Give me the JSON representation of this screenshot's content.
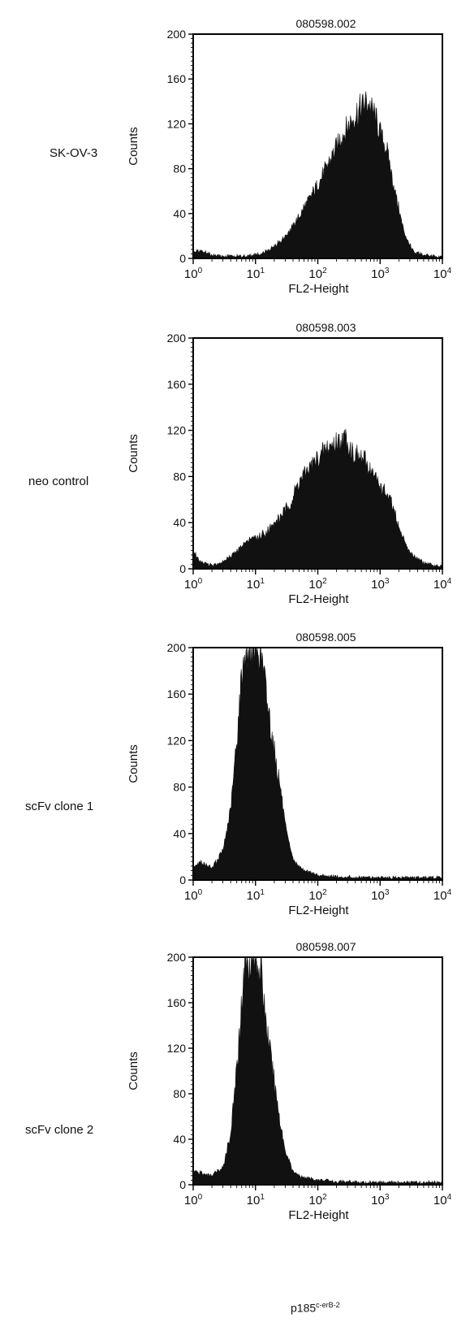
{
  "footer": {
    "base": "p185",
    "sup": "c-erB-2"
  },
  "chart_data": [
    {
      "type": "area",
      "title": "080598.002",
      "sample": "SK-OV-3",
      "xlabel": "FL2-Height",
      "ylabel": "Counts",
      "x_scale": "log",
      "xlim": [
        1,
        10000
      ],
      "ylim": [
        0,
        200
      ],
      "x_ticks": [
        "10^0",
        "10^1",
        "10^2",
        "10^3",
        "10^4"
      ],
      "y_ticks": [
        0,
        40,
        80,
        120,
        160,
        200
      ],
      "x": [
        1,
        1.3,
        2,
        4,
        7,
        10,
        15,
        25,
        40,
        60,
        100,
        150,
        250,
        400,
        600,
        800,
        1000,
        1300,
        1800,
        2500,
        3500,
        5000,
        7000,
        10000
      ],
      "y": [
        5,
        7,
        3,
        2,
        2,
        3,
        6,
        15,
        28,
        45,
        65,
        85,
        110,
        128,
        140,
        130,
        112,
        95,
        55,
        20,
        6,
        3,
        2,
        1
      ]
    },
    {
      "type": "area",
      "title": "080598.003",
      "sample": "neo control",
      "xlabel": "FL2-Height",
      "ylabel": "Counts",
      "x_scale": "log",
      "xlim": [
        1,
        10000
      ],
      "ylim": [
        0,
        200
      ],
      "x_ticks": [
        "10^0",
        "10^1",
        "10^2",
        "10^3",
        "10^4"
      ],
      "y_ticks": [
        0,
        40,
        80,
        120,
        160,
        200
      ],
      "x": [
        1,
        1.3,
        2,
        3,
        5,
        8,
        12,
        20,
        35,
        50,
        80,
        120,
        200,
        280,
        400,
        600,
        1000,
        1500,
        2000,
        3000,
        5000,
        7000,
        10000
      ],
      "y": [
        15,
        6,
        3,
        6,
        15,
        26,
        28,
        38,
        55,
        75,
        90,
        100,
        110,
        112,
        98,
        92,
        72,
        58,
        35,
        14,
        5,
        3,
        2
      ]
    },
    {
      "type": "area",
      "title": "080598.005",
      "sample": "scFv clone 1",
      "xlabel": "FL2-Height",
      "ylabel": "Counts",
      "x_scale": "log",
      "xlim": [
        1,
        10000
      ],
      "ylim": [
        0,
        200
      ],
      "x_ticks": [
        "10^0",
        "10^1",
        "10^2",
        "10^3",
        "10^4"
      ],
      "y_ticks": [
        0,
        40,
        80,
        120,
        160,
        200
      ],
      "x": [
        1,
        1.3,
        2,
        3,
        4,
        5,
        6,
        7,
        8,
        10,
        12,
        15,
        20,
        25,
        30,
        40,
        60,
        100,
        200,
        500,
        1000,
        10000
      ],
      "y": [
        12,
        15,
        10,
        25,
        60,
        120,
        175,
        200,
        200,
        200,
        200,
        160,
        110,
        80,
        45,
        18,
        8,
        4,
        3,
        2,
        2,
        2
      ]
    },
    {
      "type": "area",
      "title": "080598.007",
      "sample": "scFv clone 2",
      "xlabel": "FL2-Height",
      "ylabel": "Counts",
      "x_scale": "log",
      "xlim": [
        1,
        10000
      ],
      "ylim": [
        0,
        200
      ],
      "x_ticks": [
        "10^0",
        "10^1",
        "10^2",
        "10^3",
        "10^4"
      ],
      "y_ticks": [
        0,
        40,
        80,
        120,
        160,
        200
      ],
      "x": [
        1,
        1.3,
        2,
        3,
        4,
        5,
        6,
        7,
        8,
        10,
        12,
        15,
        20,
        25,
        30,
        40,
        60,
        100,
        200,
        500,
        1000,
        10000
      ],
      "y": [
        12,
        10,
        8,
        15,
        45,
        100,
        160,
        200,
        200,
        200,
        190,
        140,
        90,
        55,
        30,
        12,
        6,
        4,
        3,
        2,
        2,
        2
      ]
    }
  ]
}
